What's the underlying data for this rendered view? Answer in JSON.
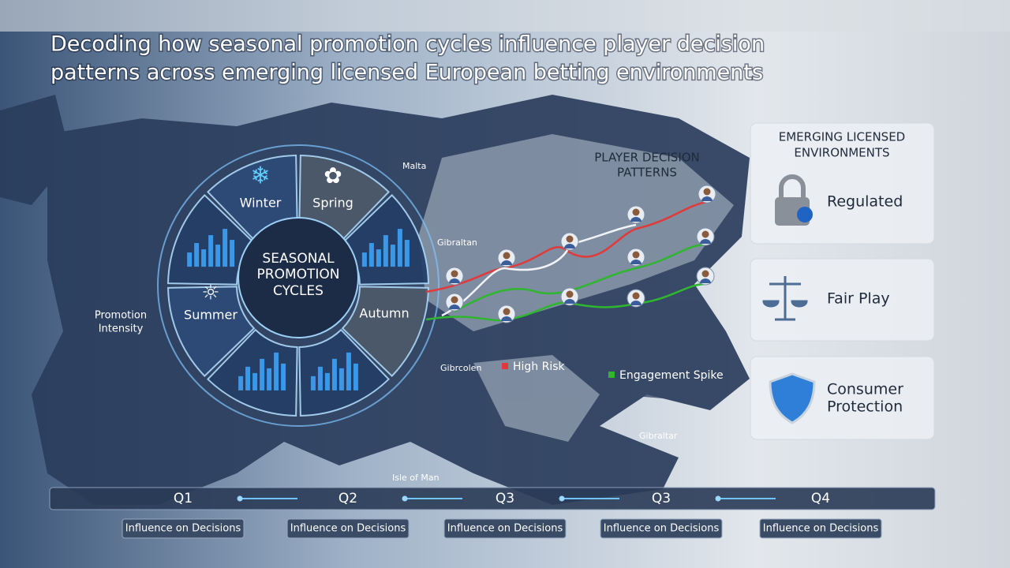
{
  "header": {
    "title_line1": "Decoding how seasonal promotion cycles influence player decision",
    "title_line2": "patterns across emerging licensed European betting environments"
  },
  "wheel": {
    "center_line1": "SEASONAL",
    "center_line2": "PROMOTION",
    "center_line3": "CYCLES",
    "seasons": [
      "Winter",
      "Spring",
      "Autumn",
      "Summer"
    ],
    "side_label_line1": "Promotion",
    "side_label_line2": "Intensity"
  },
  "map_labels": [
    "Malta",
    "Gibraltan",
    "Gibrcolen",
    "Gibraltar",
    "Isle of Man"
  ],
  "patterns": {
    "title_line1": "PLAYER DECISION",
    "title_line2": "PATTERNS",
    "legend": [
      "High Risk",
      "Engagement Spike"
    ]
  },
  "panel": {
    "title_line1": "EMERGING LICENSED",
    "title_line2": "ENVIRONMENTS",
    "cards": [
      {
        "label_line1": "Regulated"
      },
      {
        "label_line1": "Fair Play"
      },
      {
        "label_line1": "Consumer",
        "label_line2": "Protection"
      }
    ]
  },
  "timeline": {
    "quarters": [
      "Q1",
      "Q2",
      "Q3",
      "Q3",
      "Q4"
    ],
    "labels": [
      "Influence on Decisions",
      "Influence on Decisions",
      "Influence on Decisions",
      "Influence on Decisions",
      "Influence on Decisions"
    ]
  }
}
